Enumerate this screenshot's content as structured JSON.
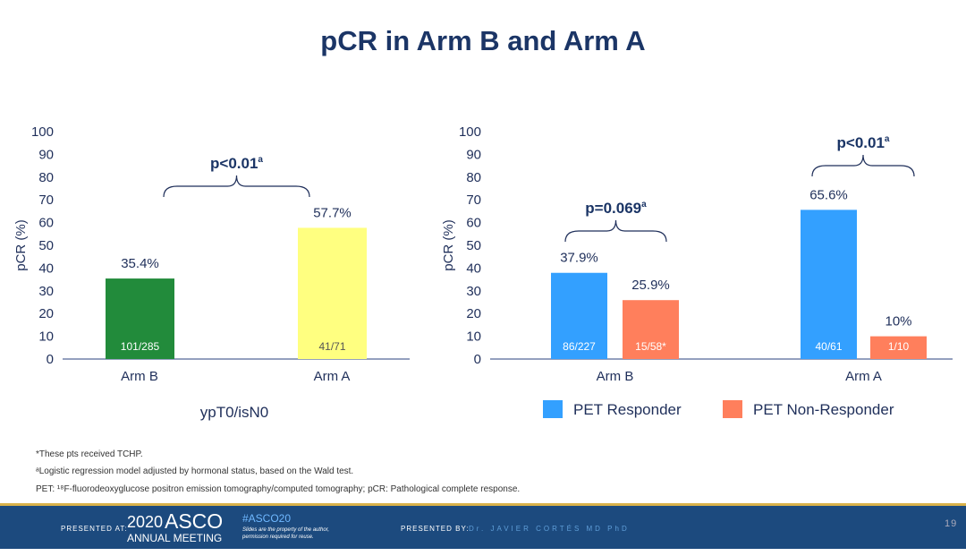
{
  "title": "pCR in Arm B and Arm A",
  "chart_data": [
    {
      "type": "bar",
      "ylabel": "pCR (%)",
      "ylim": [
        0,
        100
      ],
      "yticks": [
        0,
        10,
        20,
        30,
        40,
        50,
        60,
        70,
        80,
        90,
        100
      ],
      "categories": [
        "Arm B",
        "Arm A"
      ],
      "values": [
        35.4,
        57.7
      ],
      "value_labels": [
        "35.4%",
        "57.7%"
      ],
      "bar_labels": [
        "101/285",
        "41/71"
      ],
      "colors": [
        "#228b3b",
        "#ffff80"
      ],
      "bar_label_colors": [
        "#ffffff",
        "#555555"
      ],
      "xlabel": "ypT0/isN0",
      "annotations": [
        {
          "text": "p<0.01",
          "sup": "a"
        }
      ]
    },
    {
      "type": "bar",
      "ylabel": "pCR (%)",
      "ylim": [
        0,
        100
      ],
      "yticks": [
        0,
        10,
        20,
        30,
        40,
        50,
        60,
        70,
        80,
        90,
        100
      ],
      "categories": [
        "Arm B",
        "Arm A"
      ],
      "series": [
        {
          "name": "PET Responder",
          "color": "#33a0ff",
          "values": [
            37.9,
            65.6
          ],
          "value_labels": [
            "37.9%",
            "65.6%"
          ],
          "bar_labels": [
            "86/227",
            "40/61"
          ]
        },
        {
          "name": "PET Non-Responder",
          "color": "#ff7f5c",
          "values": [
            25.9,
            10
          ],
          "value_labels": [
            "25.9%",
            "10%"
          ],
          "bar_labels": [
            "15/58*",
            "1/10"
          ]
        }
      ],
      "annotations": [
        {
          "text": "p=0.069",
          "sup": "a",
          "group": "Arm B"
        },
        {
          "text": "p<0.01",
          "sup": "a",
          "group": "Arm A"
        }
      ],
      "legend": "bottom"
    }
  ],
  "footnotes": [
    "*These pts received TCHP.",
    "ᵃLogistic regression model adjusted by hormonal status, based on the Wald test.",
    "PET: ¹⁸F-fluorodeoxyglucose positron emission tomography/computed tomography; pCR: Pathological complete response."
  ],
  "footer": {
    "presented_at": "PRESENTED AT:",
    "year": "2020",
    "asco": "ASCO",
    "meeting": "ANNUAL MEETING",
    "hashtag": "#ASCO20",
    "disclaimer1": "Slides are the property of the author,",
    "disclaimer2": "permission required for reuse.",
    "presented_by": "PRESENTED BY:",
    "presenter": "Dr. JAVIER CORTÉS MD PhD",
    "page": "19"
  }
}
